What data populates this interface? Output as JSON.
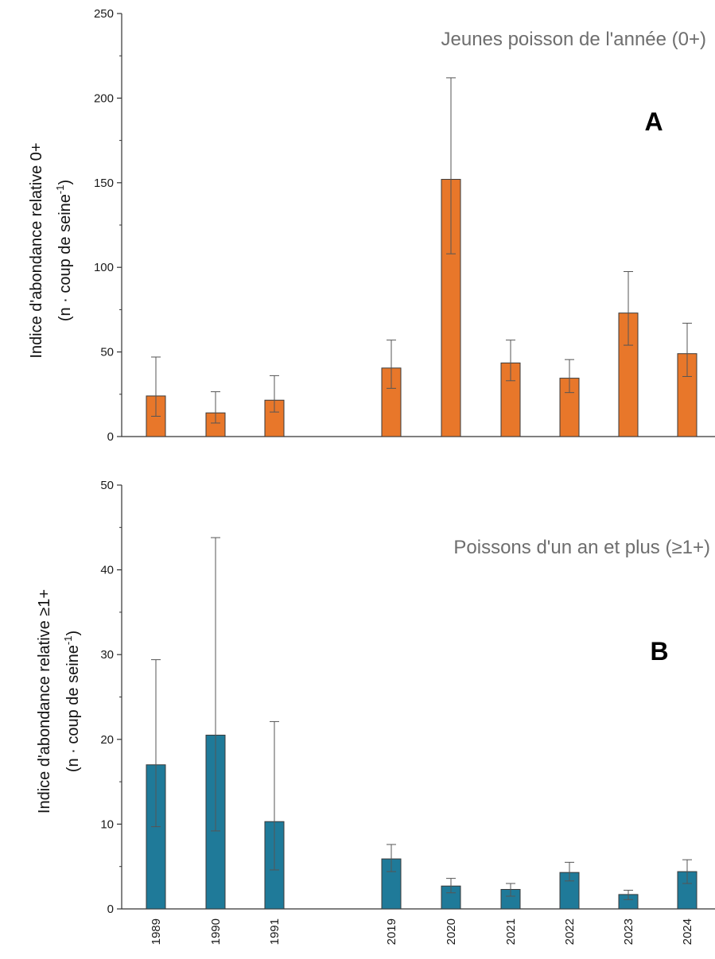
{
  "chart_data": [
    {
      "type": "bar",
      "panel_label": "A",
      "title": "Jeunes poisson de l'année (0+)",
      "ylabel_line1": "Indice d'abondance relative 0+",
      "ylabel_line2": "(n · coup de seine",
      "ylabel_sup": "-1",
      "ylabel_end": ")",
      "categories": [
        "1989",
        "1990",
        "1991",
        "2019",
        "2020",
        "2021",
        "2022",
        "2023",
        "2024"
      ],
      "values": [
        24,
        14,
        21.5,
        40.5,
        152,
        43.5,
        34.5,
        73,
        49
      ],
      "error_low": [
        12,
        8,
        14.5,
        28.5,
        108,
        33,
        26,
        54,
        35.5
      ],
      "error_high": [
        47,
        26.5,
        36,
        57,
        212,
        57,
        45.5,
        97.5,
        67
      ],
      "ylim": [
        0,
        250
      ],
      "yticks": [
        0,
        50,
        100,
        150,
        200,
        250
      ],
      "color": "#e8772a"
    },
    {
      "type": "bar",
      "panel_label": "B",
      "title": "Poissons d'un an et plus (≥1+)",
      "ylabel_line1": "Indice d'abondance relative ≥1+",
      "ylabel_line2": "(n · coup de seine",
      "ylabel_sup": "-1",
      "ylabel_end": ")",
      "categories": [
        "1989",
        "1990",
        "1991",
        "2019",
        "2020",
        "2021",
        "2022",
        "2023",
        "2024"
      ],
      "values": [
        17,
        20.5,
        10.3,
        5.9,
        2.7,
        2.3,
        4.3,
        1.7,
        4.4
      ],
      "error_low": [
        9.7,
        9.2,
        4.6,
        4.4,
        1.9,
        1.5,
        3.3,
        1.1,
        3.0
      ],
      "error_high": [
        29.4,
        43.8,
        22.1,
        7.6,
        3.6,
        3.0,
        5.5,
        2.2,
        5.8
      ],
      "ylim": [
        0,
        50
      ],
      "yticks": [
        0,
        10,
        20,
        30,
        40,
        50
      ],
      "color": "#1f7a99"
    }
  ]
}
